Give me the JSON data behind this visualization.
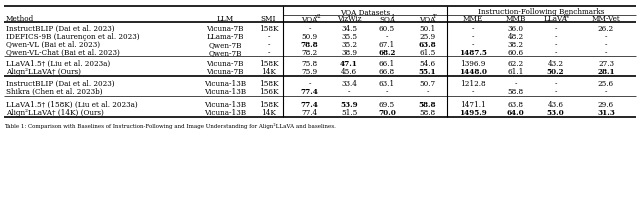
{
  "caption": "Table 1: Comparison with Baselines of Instruction-Following and Image Understanding for Align²LLaVA and baselines.",
  "col_bases": [
    "Method",
    "LLM",
    "SMI",
    "VQA",
    "VizWiz",
    "SQA",
    "VQA",
    "MME",
    "MMB",
    "LLaVA",
    "MM-Vet"
  ],
  "col_sups": [
    "",
    "",
    "",
    "v2",
    "",
    "I",
    "T",
    "",
    "",
    "W",
    ""
  ],
  "rows_top": [
    [
      "InstructBLIP (Dai et al. 2023)",
      "Vicuna-7B",
      "158K",
      "-",
      "34.5",
      "60.5",
      "50.1",
      "-",
      "36.0",
      "-",
      "26.2"
    ],
    [
      "IDEFICS-9B (Laurençon et al. 2023)",
      "LLama-7B",
      "-",
      "50.9",
      "35.5",
      "-",
      "25.9",
      "-",
      "48.2",
      "-",
      "-"
    ],
    [
      "Qwen-VL (Bai et al. 2023)",
      "Qwen-7B",
      "-",
      "78.8",
      "35.2",
      "67.1",
      "63.8",
      "-",
      "38.2",
      "-",
      "-"
    ],
    [
      "Qwen-VL-Chat (Bai et al. 2023)",
      "Qwen-7B",
      "-",
      "78.2",
      "38.9",
      "68.2",
      "61.5",
      "1487.5",
      "60.6",
      "-",
      "-"
    ]
  ],
  "rows_mid": [
    [
      "LLaVA1.5† (Liu et al. 2023a)",
      "Vicuna-7B",
      "158K",
      "75.8",
      "47.1",
      "66.1",
      "54.6",
      "1396.9",
      "62.2",
      "43.2",
      "27.3"
    ],
    [
      "Align²LLaVA† (Ours)",
      "Vicuna-7B",
      "14K",
      "75.9",
      "45.6",
      "66.8",
      "55.1",
      "1448.0",
      "61.1",
      "50.2",
      "28.1"
    ]
  ],
  "rows_bot": [
    [
      "InstructBLIP (Dai et al. 2023)",
      "Vicuna-13B",
      "158K",
      "-",
      "33.4",
      "63.1",
      "50.7",
      "1212.8",
      "-",
      "-",
      "25.6"
    ],
    [
      "Shikra (Chen et al. 2023b)",
      "Vicuna-13B",
      "156K",
      "77.4",
      "-",
      "-",
      "-",
      "-",
      "58.8",
      "-",
      "-"
    ]
  ],
  "rows_bot2": [
    [
      "LLaVA1.5† (158K) (Liu et al. 2023a)",
      "Vicuna-13B",
      "158K",
      "77.4",
      "53.9",
      "69.5",
      "58.8",
      "1471.1",
      "63.8",
      "43.6",
      "29.6"
    ],
    [
      "Align²LLaVA† (14K) (Ours)",
      "Vicuna-13B",
      "14K",
      "77.4",
      "51.5",
      "70.0",
      "58.8",
      "1495.9",
      "64.0",
      "53.0",
      "31.3"
    ]
  ],
  "bold_top": [
    [
      false,
      false,
      false,
      false,
      false,
      false,
      false,
      false,
      false,
      false,
      false
    ],
    [
      false,
      false,
      false,
      false,
      false,
      false,
      false,
      false,
      false,
      false,
      false
    ],
    [
      false,
      false,
      false,
      true,
      false,
      false,
      true,
      false,
      false,
      false,
      false
    ],
    [
      false,
      false,
      false,
      false,
      false,
      true,
      false,
      true,
      false,
      false,
      false
    ]
  ],
  "bold_mid": [
    [
      false,
      false,
      false,
      false,
      true,
      false,
      false,
      false,
      false,
      false,
      false
    ],
    [
      false,
      false,
      false,
      false,
      false,
      false,
      true,
      true,
      false,
      true,
      true
    ]
  ],
  "bold_bot": [
    [
      false,
      false,
      false,
      false,
      false,
      false,
      false,
      false,
      false,
      false,
      false
    ],
    [
      false,
      false,
      false,
      true,
      false,
      false,
      false,
      false,
      false,
      false,
      false
    ]
  ],
  "bold_bot2": [
    [
      false,
      false,
      false,
      true,
      true,
      false,
      true,
      false,
      false,
      false,
      false
    ],
    [
      false,
      false,
      false,
      false,
      false,
      true,
      false,
      true,
      true,
      true,
      true
    ]
  ],
  "background_color": "#ffffff",
  "text_color": "#000000"
}
